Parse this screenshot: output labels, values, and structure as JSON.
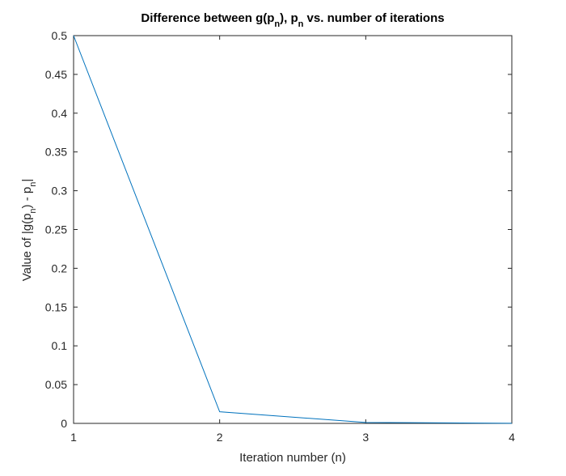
{
  "chart_data": {
    "type": "line",
    "title_parts": [
      "Difference between g(p",
      "n",
      "), p",
      "n",
      " vs. number of iterations"
    ],
    "xlabel": "Iteration number (n)",
    "ylabel_parts": [
      "Value of |g(p",
      "n",
      ") - p",
      "n",
      "|"
    ],
    "xlim": [
      1,
      4
    ],
    "ylim": [
      0,
      0.5
    ],
    "xticks": [
      "1",
      "2",
      "3",
      "4"
    ],
    "yticks": [
      "0",
      "0.05",
      "0.1",
      "0.15",
      "0.2",
      "0.25",
      "0.3",
      "0.35",
      "0.4",
      "0.45",
      "0.5"
    ],
    "x": [
      1,
      2,
      3,
      4
    ],
    "series": [
      {
        "values": [
          0.5,
          0.015,
          0.0012,
          0.0001
        ]
      }
    ],
    "grid": false,
    "line_color": "#0072BD",
    "axis_color": "#262626"
  }
}
